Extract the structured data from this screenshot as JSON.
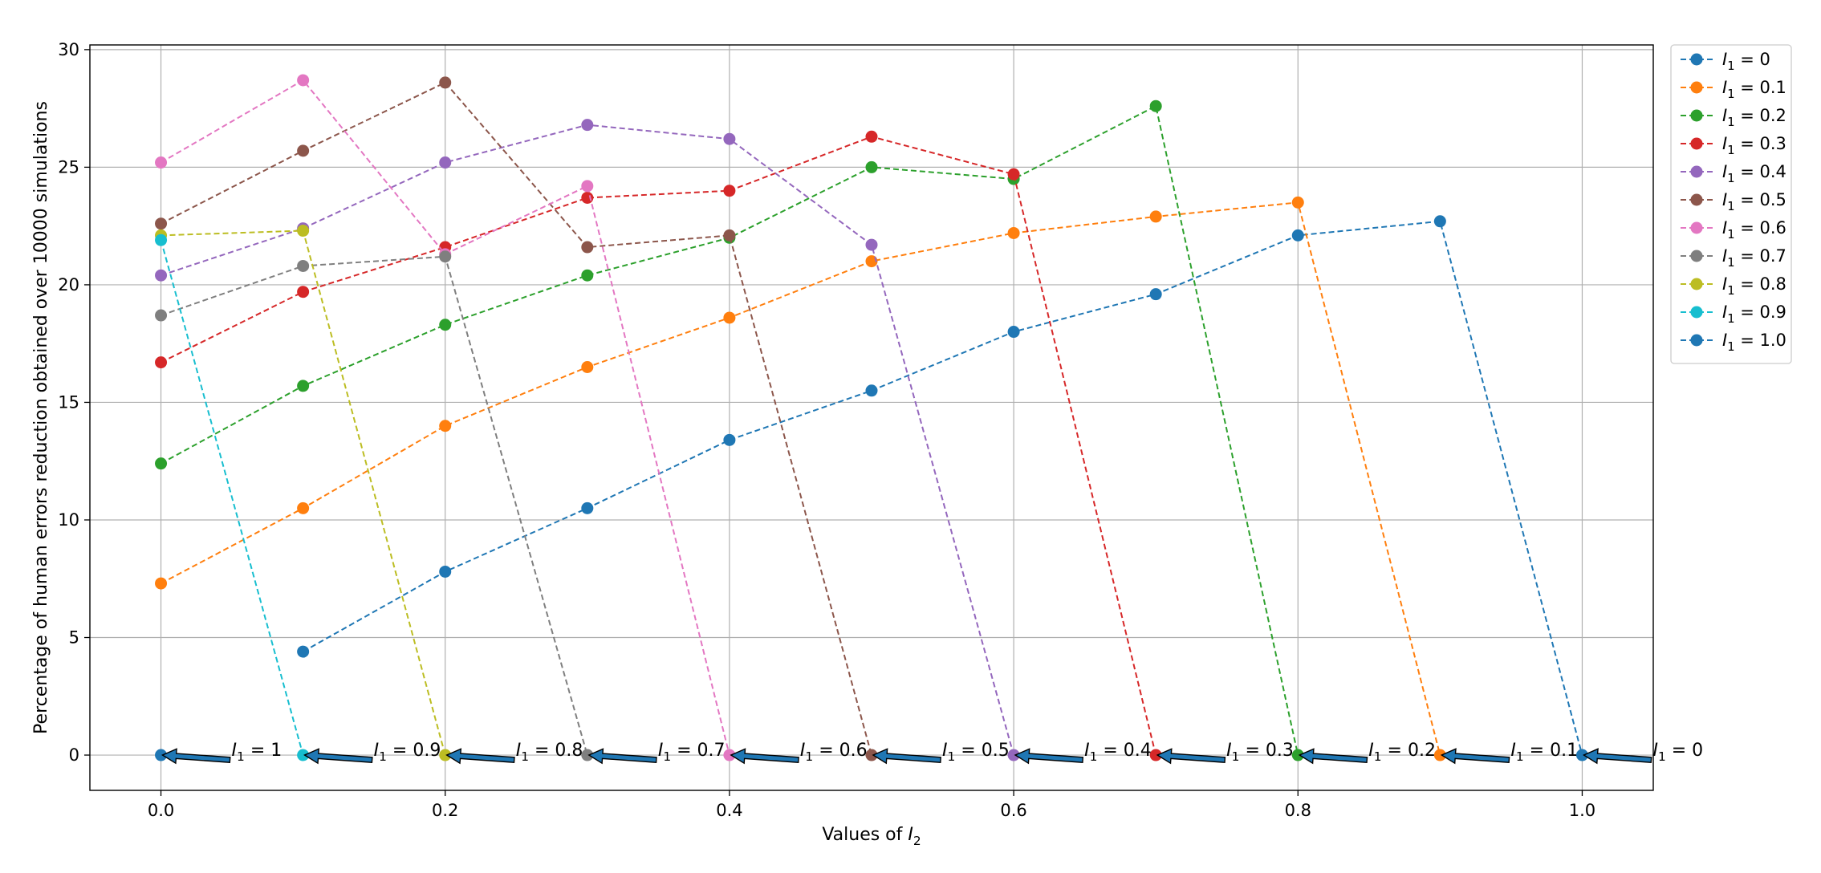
{
  "chart_data": {
    "type": "line",
    "xlabel": "Values of I2",
    "ylabel": "Percentage of human errors reduction obtained over 10000 simulations",
    "xlim": [
      -0.05,
      1.05
    ],
    "ylim": [
      -1.5,
      30.2
    ],
    "xticks": [
      "0.0",
      "0.2",
      "0.4",
      "0.6",
      "0.8",
      "1.0"
    ],
    "yticks": [
      "0",
      "5",
      "10",
      "15",
      "20",
      "25",
      "30"
    ],
    "grid": true,
    "legend_position": "outside-right",
    "line_style": "dashed",
    "marker": "circle",
    "series": [
      {
        "name": "I1 = 0",
        "color": "#1f77b4",
        "x": [
          0.1,
          0.2,
          0.3,
          0.4,
          0.5,
          0.6,
          0.7,
          0.8,
          0.9,
          1.0
        ],
        "y": [
          4.4,
          7.8,
          10.5,
          13.4,
          15.5,
          18.0,
          19.6,
          22.1,
          22.7,
          0
        ]
      },
      {
        "name": "I1 = 0.1",
        "color": "#ff7f0e",
        "x": [
          0.0,
          0.1,
          0.2,
          0.3,
          0.4,
          0.5,
          0.6,
          0.7,
          0.8,
          0.9
        ],
        "y": [
          7.3,
          10.5,
          14.0,
          16.5,
          18.6,
          21.0,
          22.2,
          22.9,
          23.5,
          0
        ]
      },
      {
        "name": "I1 = 0.2",
        "color": "#2ca02c",
        "x": [
          0.0,
          0.1,
          0.2,
          0.3,
          0.4,
          0.5,
          0.6,
          0.7,
          0.8
        ],
        "y": [
          12.4,
          15.7,
          18.3,
          20.4,
          22.0,
          25.0,
          24.5,
          27.6,
          0
        ]
      },
      {
        "name": "I1 = 0.3",
        "color": "#d62728",
        "x": [
          0.0,
          0.1,
          0.2,
          0.3,
          0.4,
          0.5,
          0.6,
          0.7
        ],
        "y": [
          16.7,
          19.7,
          21.6,
          23.7,
          24.0,
          26.3,
          24.7,
          0
        ]
      },
      {
        "name": "I1 = 0.4",
        "color": "#9467bd",
        "x": [
          0.0,
          0.1,
          0.2,
          0.3,
          0.4,
          0.5,
          0.6
        ],
        "y": [
          20.4,
          22.4,
          25.2,
          26.8,
          26.2,
          21.7,
          0
        ]
      },
      {
        "name": "I1 = 0.5",
        "color": "#8c564b",
        "x": [
          0.0,
          0.1,
          0.2,
          0.3,
          0.4,
          0.5
        ],
        "y": [
          22.6,
          25.7,
          28.6,
          21.6,
          22.1,
          0
        ]
      },
      {
        "name": "I1 = 0.6",
        "color": "#e377c2",
        "x": [
          0.0,
          0.1,
          0.2,
          0.3,
          0.4
        ],
        "y": [
          25.2,
          28.7,
          21.3,
          24.2,
          0
        ]
      },
      {
        "name": "I1 = 0.7",
        "color": "#7f7f7f",
        "x": [
          0.0,
          0.1,
          0.2,
          0.3
        ],
        "y": [
          18.7,
          20.8,
          21.2,
          0
        ]
      },
      {
        "name": "I1 = 0.8",
        "color": "#bcbd22",
        "x": [
          0.0,
          0.1,
          0.2
        ],
        "y": [
          22.1,
          22.3,
          0
        ]
      },
      {
        "name": "I1 = 0.9",
        "color": "#17becf",
        "x": [
          0.0,
          0.1
        ],
        "y": [
          21.9,
          0
        ]
      },
      {
        "name": "I1 = 1.0",
        "color": "#1f77b4",
        "x": [
          0.0
        ],
        "y": [
          0
        ]
      }
    ],
    "annotations": [
      {
        "text": "I1 = 1",
        "x": 0.0,
        "y": 0
      },
      {
        "text": "I1 = 0.9",
        "x": 0.1,
        "y": 0
      },
      {
        "text": "I1 = 0.8",
        "x": 0.2,
        "y": 0
      },
      {
        "text": "I1 = 0.7",
        "x": 0.3,
        "y": 0
      },
      {
        "text": "I1 = 0.6",
        "x": 0.4,
        "y": 0
      },
      {
        "text": "I1 = 0.5",
        "x": 0.5,
        "y": 0
      },
      {
        "text": "I1 = 0.4",
        "x": 0.6,
        "y": 0
      },
      {
        "text": "I1 = 0.3",
        "x": 0.7,
        "y": 0
      },
      {
        "text": "I1 = 0.2",
        "x": 0.8,
        "y": 0
      },
      {
        "text": "I1 = 0.1",
        "x": 0.9,
        "y": 0
      },
      {
        "text": "I1 = 0",
        "x": 1.0,
        "y": 0
      }
    ],
    "annotation_arrow_color": "#1f77b4"
  }
}
